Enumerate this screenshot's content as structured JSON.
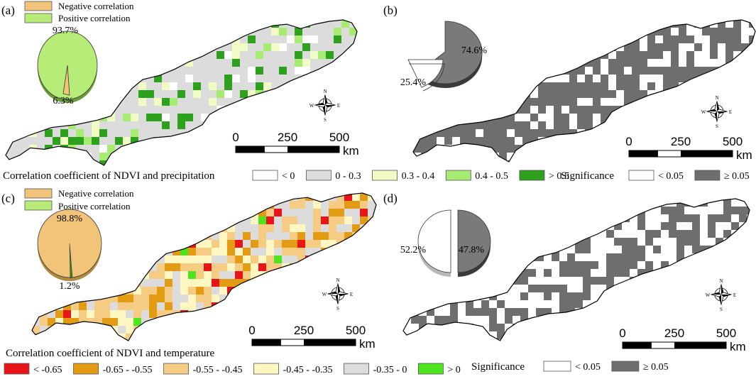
{
  "panels": {
    "a": {
      "label": "(a)",
      "legend_negative": "Negative correlation",
      "legend_positive": "Positive correlation",
      "pie_pct_major": "93.7%",
      "pie_pct_minor": "6.3%",
      "pie_fraction_minor": 0.063,
      "caption": "Correlation coefficient of NDVI and precipitation",
      "classes": [
        "< 0",
        "0 - 0.3",
        "0.3 - 0.4",
        "0.4 - 0.5",
        "> 0.5"
      ],
      "class_colors": [
        "#ffffff",
        "#dcdcdc",
        "#f0fcc4",
        "#a6ec72",
        "#2da01e"
      ]
    },
    "b": {
      "label": "(b)",
      "pie_pct_major": "74.6%",
      "pie_pct_minor": "25.4%",
      "pie_fraction_minor": 0.254,
      "caption": "Significance",
      "classes": [
        "< 0.05",
        "≥ 0.05"
      ],
      "class_colors": [
        "#ffffff",
        "#6e6e6e"
      ]
    },
    "c": {
      "label": "(c)",
      "legend_negative": "Negative correlation",
      "legend_positive": "Positive correlation",
      "pie_pct_major": "98.8%",
      "pie_pct_minor": "1.2%",
      "pie_fraction_minor": 0.012,
      "caption": "Correlation coefficient of NDVI and temperature",
      "classes": [
        "< -0.65",
        "-0.65 - -0.55",
        "-0.55 - -0.45",
        "-0.45 - -0.35",
        "-0.35 - 0",
        "> 0"
      ],
      "class_colors": [
        "#e8141a",
        "#e39b13",
        "#f6cc84",
        "#fef7c2",
        "#dcdcdc",
        "#4fe51e"
      ]
    },
    "d": {
      "label": "(d)",
      "pie_pct_major": "52.2%",
      "pie_pct_minor": "47.8%",
      "pie_fraction_minor": 0.478,
      "caption": "Significance",
      "classes": [
        "< 0.05",
        "≥ 0.05"
      ],
      "class_colors": [
        "#ffffff",
        "#6e6e6e"
      ]
    }
  },
  "scalebar": {
    "ticks": [
      "0",
      "250",
      "500"
    ],
    "unit": "km"
  },
  "compass": {
    "n": "N",
    "e": "E",
    "s": "S",
    "w": "W"
  },
  "colors": {
    "negative_slice": "#f1c47a",
    "positive_slice": "#b7ec78",
    "gray_slice": "#7a7a7a",
    "outline": "#000000"
  }
}
